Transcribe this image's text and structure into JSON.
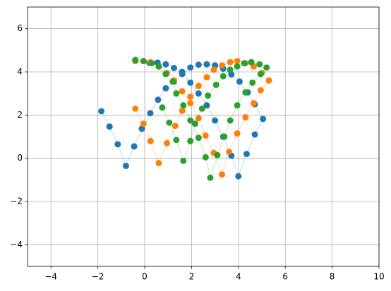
{
  "chart_data": {
    "type": "scatter",
    "xlim": [
      -5,
      10
    ],
    "ylim": [
      -5,
      7
    ],
    "xticks": [
      {
        "value": -4,
        "label": "−4"
      },
      {
        "value": -2,
        "label": "−2"
      },
      0,
      2,
      4,
      6,
      8,
      10
    ],
    "yticks": [
      {
        "value": -4,
        "label": "−4"
      },
      {
        "value": -2,
        "label": "−2"
      },
      0,
      2,
      4,
      6
    ],
    "grid": true,
    "series": [
      {
        "color": "#1f77b4",
        "x": [
          -1.85,
          -1.5,
          -1.15,
          -0.8,
          -0.45,
          -0.12,
          0.24,
          0.57,
          0.9,
          1.25,
          1.6,
          1.95,
          2.3,
          2.65,
          3.0,
          3.35,
          3.7,
          4.05,
          4.4,
          4.7,
          5.05,
          4.7,
          4.35,
          4.0,
          3.7,
          3.35,
          3.0,
          2.65,
          2.3,
          1.95,
          1.6,
          1.25,
          0.9,
          0.55,
          0.2
        ],
        "values": [
          2.18,
          1.47,
          0.65,
          -0.35,
          0.55,
          1.37,
          2.09,
          2.71,
          3.24,
          3.55,
          3.9,
          4.2,
          4.33,
          4.35,
          4.3,
          4.15,
          3.88,
          3.55,
          3.05,
          2.5,
          1.82,
          1.1,
          0.2,
          -0.83,
          0.12,
          1.0,
          1.75,
          2.45,
          3.0,
          3.5,
          4.0,
          4.18,
          4.35,
          4.43,
          4.42
        ]
      },
      {
        "color": "#ff7f0e",
        "x": [
          -0.4,
          -0.05,
          0.25,
          0.6,
          0.95,
          1.3,
          1.6,
          1.95,
          2.3,
          2.65,
          2.95,
          3.3,
          3.65,
          3.95,
          4.3,
          4.65,
          5.0,
          5.3,
          4.95,
          4.65,
          4.3,
          3.95,
          3.6,
          3.3,
          2.95,
          2.6,
          2.3,
          1.95,
          1.6,
          1.25,
          0.95,
          0.6,
          0.25,
          -0.4
        ],
        "values": [
          2.3,
          1.6,
          0.8,
          -0.22,
          0.7,
          1.5,
          2.2,
          2.85,
          3.35,
          3.75,
          4.1,
          4.3,
          4.45,
          4.5,
          4.4,
          4.25,
          3.95,
          3.6,
          3.15,
          2.55,
          1.9,
          1.15,
          0.3,
          -0.75,
          0.25,
          1.05,
          1.85,
          2.55,
          3.1,
          3.6,
          3.95,
          4.25,
          4.45,
          4.5
        ]
      },
      {
        "color": "#2ca02c",
        "x": [
          -0.4,
          -0.05,
          0.3,
          0.6,
          0.9,
          1.2,
          1.35,
          1.65,
          1.95,
          2.3,
          2.6,
          2.8,
          3.1,
          3.4,
          3.65,
          3.95,
          4.3,
          4.6,
          4.95,
          5.2,
          4.9,
          4.55,
          4.25,
          3.95,
          3.65,
          3.35,
          3.05,
          2.7,
          2.45,
          2.15,
          1.95,
          1.65,
          1.35,
          1.05,
          0.75
        ],
        "values": [
          4.55,
          4.5,
          4.4,
          4.25,
          3.9,
          3.55,
          3.0,
          2.45,
          1.75,
          0.95,
          0.05,
          -0.9,
          0.15,
          1.0,
          1.75,
          2.45,
          3.05,
          3.5,
          3.9,
          4.2,
          4.35,
          4.45,
          4.4,
          4.25,
          4.1,
          3.8,
          3.4,
          2.9,
          2.3,
          1.6,
          0.8,
          -0.12,
          0.85,
          1.65,
          2.35
        ]
      }
    ]
  }
}
